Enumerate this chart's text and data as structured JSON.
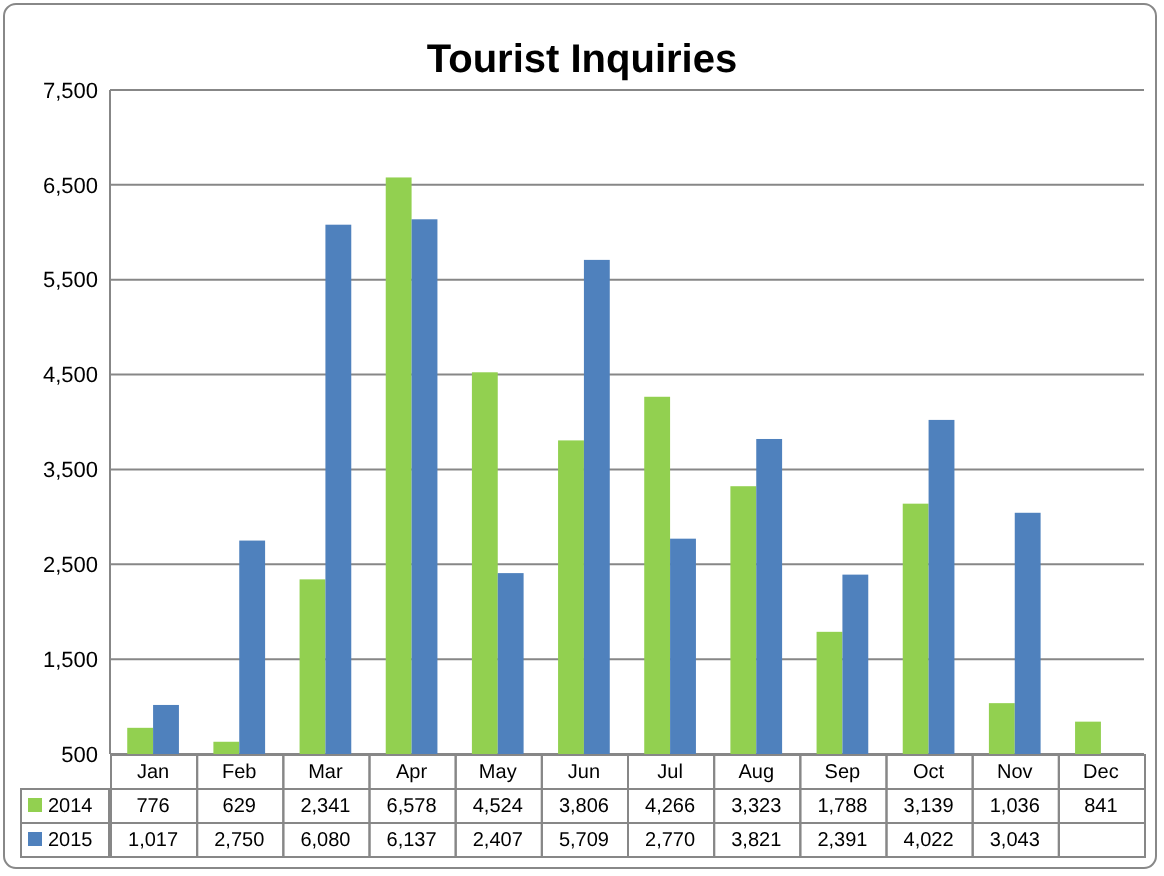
{
  "chart_data": {
    "type": "bar",
    "title": "Tourist Inquiries",
    "categories": [
      "Jan",
      "Feb",
      "Mar",
      "Apr",
      "May",
      "Jun",
      "Jul",
      "Aug",
      "Sep",
      "Oct",
      "Nov",
      "Dec"
    ],
    "series": [
      {
        "name": "2014",
        "color": "#92d050",
        "values": [
          776,
          629,
          2341,
          6578,
          4524,
          3806,
          4266,
          3323,
          1788,
          3139,
          1036,
          841
        ],
        "value_labels": [
          "776",
          "629",
          "2,341",
          "6,578",
          "4,524",
          "3,806",
          "4,266",
          "3,323",
          "1,788",
          "3,139",
          "1,036",
          "841"
        ]
      },
      {
        "name": "2015",
        "color": "#4f81bd",
        "values": [
          1017,
          2750,
          6080,
          6137,
          2407,
          5709,
          2770,
          3821,
          2391,
          4022,
          3043,
          null
        ],
        "value_labels": [
          "1,017",
          "2,750",
          "6,080",
          "6,137",
          "2,407",
          "5,709",
          "2,770",
          "3,821",
          "2,391",
          "4,022",
          "3,043",
          null
        ]
      }
    ],
    "ylim": [
      500,
      7500
    ],
    "yticks": [
      {
        "value": 500,
        "label": "500"
      },
      {
        "value": 1500,
        "label": "1,500"
      },
      {
        "value": 2500,
        "label": "2,500"
      },
      {
        "value": 3500,
        "label": "3,500"
      },
      {
        "value": 4500,
        "label": "4,500"
      },
      {
        "value": 5500,
        "label": "5,500"
      },
      {
        "value": 6500,
        "label": "6,500"
      },
      {
        "value": 7500,
        "label": "7,500"
      }
    ],
    "grid": "y",
    "legend": "bottom"
  }
}
